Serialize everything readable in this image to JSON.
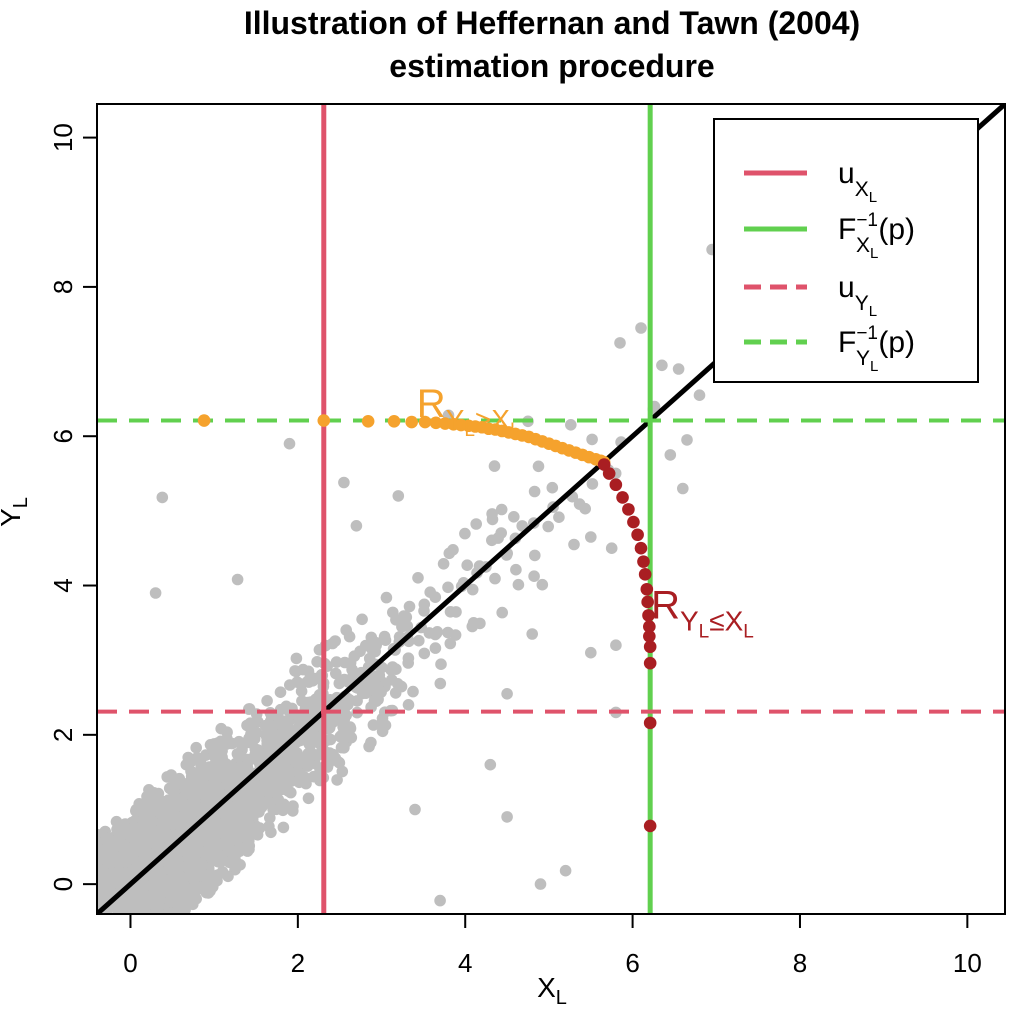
{
  "chart_data": {
    "type": "scatter",
    "title_lines": [
      "Illustration of Heffernan and Tawn (2004)",
      "estimation procedure"
    ],
    "xlabel": {
      "main": "X",
      "sub": "L"
    },
    "ylabel": {
      "main": "Y",
      "sub": "L"
    },
    "xlim": [
      -0.4,
      10.45
    ],
    "ylim": [
      -0.4,
      10.45
    ],
    "x_ticks": [
      0,
      2,
      4,
      6,
      8,
      10
    ],
    "y_ticks": [
      0,
      2,
      4,
      6,
      8,
      10
    ],
    "grid": false,
    "legend_position": "top-right",
    "colors": {
      "points": "#BEBEBE",
      "threshold": "#DF536B",
      "quantile": "#61D04F",
      "region_above": "#F5A22D",
      "region_below": "#A91E22",
      "diagonal": "#000000"
    },
    "diagonal": {
      "slope": 1,
      "intercept": 0
    },
    "thresholds": {
      "u_x": 2.31,
      "u_y": 2.31,
      "q_x": 6.21,
      "q_y": 6.21
    },
    "legend": [
      {
        "main": "u",
        "sub": "X",
        "subsub": "L",
        "sup": "",
        "suffix": "",
        "color": "#DF536B",
        "dashed": false
      },
      {
        "main": "F",
        "sub": "X",
        "subsub": "L",
        "sup": "−1",
        "suffix": "(p)",
        "color": "#61D04F",
        "dashed": false
      },
      {
        "main": "u",
        "sub": "Y",
        "subsub": "L",
        "sup": "",
        "suffix": "",
        "color": "#DF536B",
        "dashed": true
      },
      {
        "main": "F",
        "sub": "Y",
        "subsub": "L",
        "sup": "−1",
        "suffix": "(p)",
        "color": "#61D04F",
        "dashed": true
      }
    ],
    "annotations": [
      {
        "main": "R",
        "sub1": "Y",
        "subsub1": "L",
        "rel": ">",
        "sub2": "X",
        "subsub2": "L",
        "x": 3.6,
        "y": 6.5,
        "color": "#F5A22D"
      },
      {
        "main": "R",
        "sub1": "Y",
        "subsub1": "L",
        "rel": "≤",
        "sub2": "X",
        "subsub2": "L",
        "x": 6.4,
        "y": 3.8,
        "color": "#A91E22"
      }
    ],
    "curve_above": [
      [
        0.88,
        6.21
      ],
      [
        2.31,
        6.21
      ],
      [
        2.84,
        6.2
      ],
      [
        3.15,
        6.2
      ],
      [
        3.36,
        6.19
      ],
      [
        3.52,
        6.19
      ],
      [
        3.65,
        6.18
      ],
      [
        3.76,
        6.17
      ],
      [
        3.86,
        6.16
      ],
      [
        3.95,
        6.15
      ],
      [
        4.04,
        6.14
      ],
      [
        4.12,
        6.13
      ],
      [
        4.2,
        6.12
      ],
      [
        4.28,
        6.1
      ],
      [
        4.36,
        6.09
      ],
      [
        4.44,
        6.07
      ],
      [
        4.52,
        6.05
      ],
      [
        4.6,
        6.03
      ],
      [
        4.68,
        6.01
      ],
      [
        4.76,
        5.99
      ],
      [
        4.84,
        5.96
      ],
      [
        4.92,
        5.93
      ],
      [
        5.0,
        5.9
      ],
      [
        5.08,
        5.87
      ],
      [
        5.16,
        5.84
      ],
      [
        5.24,
        5.81
      ],
      [
        5.32,
        5.78
      ],
      [
        5.4,
        5.75
      ],
      [
        5.48,
        5.72
      ],
      [
        5.56,
        5.69
      ],
      [
        5.62,
        5.67
      ],
      [
        5.66,
        5.65
      ]
    ],
    "curve_below": [
      [
        5.66,
        5.62
      ],
      [
        5.72,
        5.5
      ],
      [
        5.8,
        5.35
      ],
      [
        5.88,
        5.18
      ],
      [
        5.95,
        5.02
      ],
      [
        6.01,
        4.85
      ],
      [
        6.06,
        4.68
      ],
      [
        6.1,
        4.5
      ],
      [
        6.13,
        4.32
      ],
      [
        6.15,
        4.15
      ],
      [
        6.17,
        3.95
      ],
      [
        6.18,
        3.78
      ],
      [
        6.19,
        3.6
      ],
      [
        6.2,
        3.45
      ],
      [
        6.2,
        3.32
      ],
      [
        6.21,
        3.18
      ],
      [
        6.21,
        2.96
      ],
      [
        6.21,
        2.16
      ],
      [
        6.21,
        0.78
      ]
    ]
  }
}
